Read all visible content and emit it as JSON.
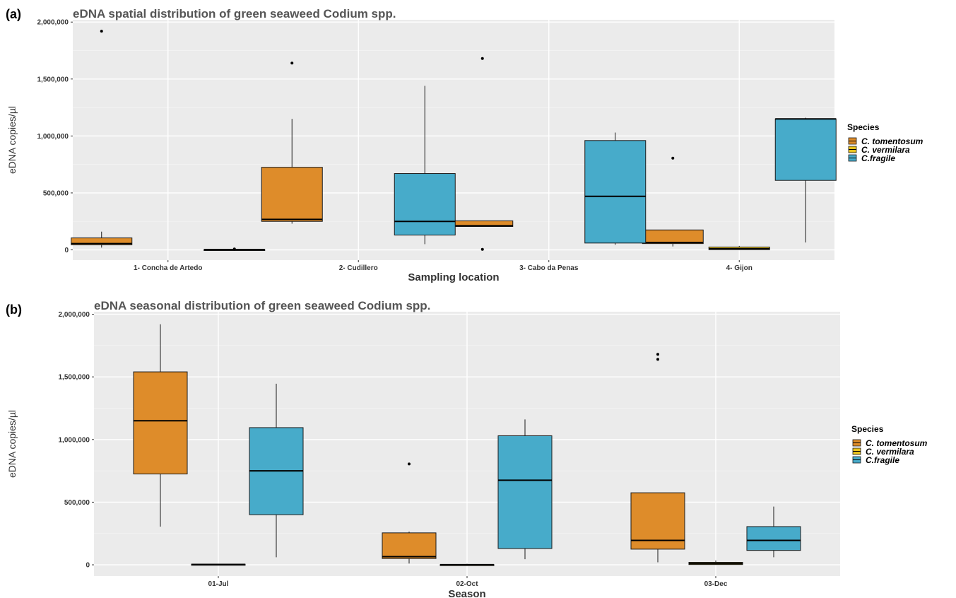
{
  "chart_data": [
    {
      "type": "box",
      "panel_label": "(a)",
      "title": "eDNA spatial distribution of green seaweed Codium spp.",
      "xlabel": "Sampling location",
      "ylabel": "eDNA copies/µl",
      "ylim": [
        -90000,
        2020000
      ],
      "yticks": [
        0,
        500000,
        1000000,
        1500000,
        2000000
      ],
      "ytick_labels": [
        "0",
        "500,000",
        "1,000,000",
        "1,500,000",
        "2,000,000"
      ],
      "categories": [
        "1- Concha de Artedo",
        "2- Cudillero",
        "3- Cabo da Penas",
        "4- Gijon"
      ],
      "legend": {
        "title": "Species",
        "position": "right"
      },
      "series": [
        {
          "name": "C. tomentosum",
          "color": "#DE8C2A",
          "boxes": [
            {
              "q1": 45000,
              "median": 55000,
              "q3": 105000,
              "lo": 20000,
              "hi": 160000,
              "outliers": [
                1920000
              ]
            },
            {
              "q1": 250000,
              "median": 268000,
              "q3": 725000,
              "lo": 230000,
              "hi": 1150000,
              "outliers": [
                1640000
              ]
            },
            {
              "q1": 205000,
              "median": 212000,
              "q3": 255000,
              "lo": 205000,
              "hi": 255000,
              "outliers": [
                1680000,
                5000
              ]
            },
            {
              "q1": 55000,
              "median": 65000,
              "q3": 175000,
              "lo": 30000,
              "hi": 175000,
              "outliers": [
                805000
              ]
            }
          ]
        },
        {
          "name": "C. vermilara",
          "color": "#E8C21E",
          "boxes": [
            null,
            null,
            null,
            {
              "q1": 2000,
              "median": 10000,
              "q3": 25000,
              "lo": 0,
              "hi": 35000,
              "outliers": []
            }
          ]
        },
        {
          "name": "C.fragile",
          "color": "#47ABCA",
          "boxes": [
            {
              "q1": 0,
              "median": 2000,
              "q3": 3000,
              "lo": 0,
              "hi": 3000,
              "outliers": [
                8000
              ]
            },
            {
              "q1": 130000,
              "median": 250000,
              "q3": 670000,
              "lo": 50000,
              "hi": 1440000,
              "outliers": []
            },
            {
              "q1": 60000,
              "median": 470000,
              "q3": 960000,
              "lo": 45000,
              "hi": 1030000,
              "outliers": []
            },
            {
              "q1": 610000,
              "median": 1150000,
              "q3": 1150000,
              "lo": 65000,
              "hi": 1160000,
              "outliers": []
            }
          ]
        }
      ],
      "extra_boxes": [
        {
          "category_index": 0.0,
          "note": "",
          "series": "C.fragile_center",
          "q1": 0,
          "median": 1000,
          "q3": 3000,
          "lo": 0,
          "hi": 3000
        },
        {
          "category_index": 1.0,
          "series": "C.fragile_center",
          "q1": 1000,
          "median": 2000,
          "q3": 3000,
          "lo": 0,
          "hi": 3000
        },
        {
          "category_index": 2.0,
          "series": "C.fragile_center",
          "q1": 0,
          "median": 1000,
          "q3": 2000,
          "lo": 0,
          "hi": 2000,
          "outliers": [
            30000
          ]
        }
      ]
    },
    {
      "type": "box",
      "panel_label": "(b)",
      "title": "eDNA seasonal distribution of green seaweed Codium spp.",
      "xlabel": "Season",
      "ylabel": "eDNA copies/µl",
      "ylim": [
        -90000,
        2020000
      ],
      "yticks": [
        0,
        500000,
        1000000,
        1500000,
        2000000
      ],
      "ytick_labels": [
        "0",
        "500,000",
        "1,000,000",
        "1,500,000",
        "2,000,000"
      ],
      "categories": [
        "01-Jul",
        "02-Oct",
        "03-Dec"
      ],
      "legend": {
        "title": "Species",
        "position": "right"
      },
      "series": [
        {
          "name": "C. tomentosum",
          "color": "#DE8C2A",
          "boxes": [
            {
              "q1": 725000,
              "median": 1150000,
              "q3": 1540000,
              "lo": 305000,
              "hi": 1920000,
              "outliers": []
            },
            {
              "q1": 50000,
              "median": 65000,
              "q3": 255000,
              "lo": 10000,
              "hi": 265000,
              "outliers": [
                805000
              ]
            },
            {
              "q1": 125000,
              "median": 195000,
              "q3": 575000,
              "lo": 20000,
              "hi": 575000,
              "outliers": [
                1680000,
                1640000
              ]
            }
          ]
        },
        {
          "name": "C. vermilara",
          "color": "#E8C21E",
          "boxes": [
            {
              "q1": 1000,
              "median": 3000,
              "q3": 5000,
              "lo": 0,
              "hi": 5000,
              "outliers": []
            },
            {
              "q1": 0,
              "median": 1000,
              "q3": 2000,
              "lo": 0,
              "hi": 8000,
              "outliers": []
            },
            {
              "q1": 2000,
              "median": 10000,
              "q3": 20000,
              "lo": 0,
              "hi": 35000,
              "outliers": []
            }
          ]
        },
        {
          "name": "C.fragile",
          "color": "#47ABCA",
          "boxes": [
            {
              "q1": 400000,
              "median": 750000,
              "q3": 1095000,
              "lo": 60000,
              "hi": 1445000,
              "outliers": []
            },
            {
              "q1": 130000,
              "median": 675000,
              "q3": 1030000,
              "lo": 45000,
              "hi": 1160000,
              "outliers": []
            },
            {
              "q1": 115000,
              "median": 195000,
              "q3": 305000,
              "lo": 60000,
              "hi": 465000,
              "outliers": []
            }
          ]
        }
      ]
    }
  ]
}
